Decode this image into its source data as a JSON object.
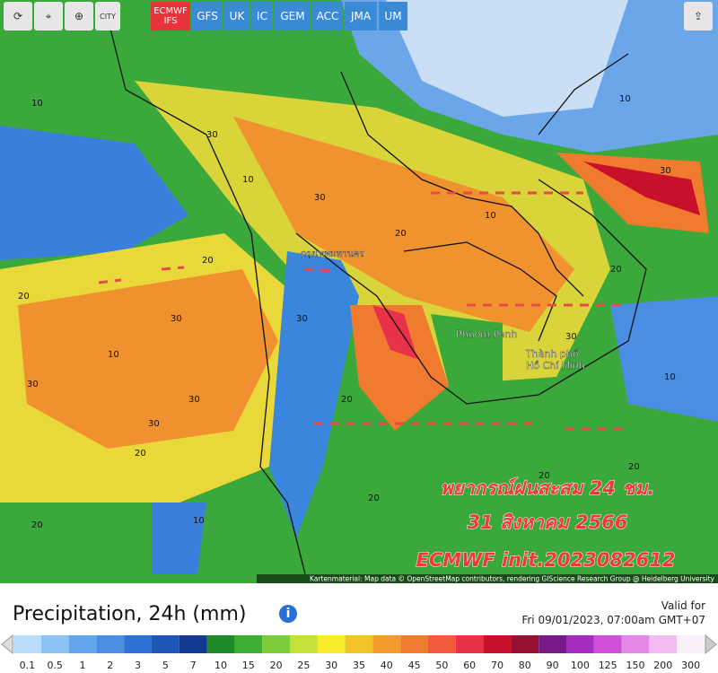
{
  "toolbar": {
    "city_button": "CITY",
    "models": [
      "ECMWF IFS",
      "GFS",
      "UK",
      "IC",
      "GEM",
      "ACC",
      "JMA",
      "UM"
    ]
  },
  "map": {
    "place_labels": [
      "กรุงเทพมหานคร",
      "Phnom Penh",
      "Thành phố",
      "Hồ Chí Minh"
    ],
    "contour_labels": [
      "10",
      "30",
      "10",
      "20",
      "30",
      "10",
      "20",
      "30",
      "30",
      "30",
      "20",
      "10",
      "20",
      "30",
      "20",
      "30",
      "20",
      "10",
      "30",
      "20",
      "20",
      "10",
      "30",
      "20",
      "10",
      "20"
    ],
    "overlay": [
      "พยากรณ์ฝนสะสม 24 ชม.",
      "31 สิงหาคม 2566",
      "ECMWF init.2023082612"
    ],
    "attribution": "Kartenmaterial: Map data © OpenStreetMap contributors, rendering GIScience Research Group @ Heidelberg University"
  },
  "panel": {
    "title": "Precipitation, 24h (mm)",
    "valid_label": "Valid for",
    "valid_time": "Fri 09/01/2023, 07:00am GMT+07",
    "scale_labels": [
      "0.1",
      "0.5",
      "1",
      "2",
      "3",
      "5",
      "7",
      "10",
      "15",
      "20",
      "25",
      "30",
      "35",
      "40",
      "45",
      "50",
      "60",
      "70",
      "80",
      "90",
      "100",
      "125",
      "150",
      "200",
      "300"
    ],
    "scale_colors": [
      "#b9dcfa",
      "#8cc2f4",
      "#64a6ec",
      "#4a8ee4",
      "#2e72d6",
      "#1e56b8",
      "#123a90",
      "#1f8a2a",
      "#3cae32",
      "#7ccc3a",
      "#c4e03a",
      "#f6ec2c",
      "#f2c42a",
      "#f29a2a",
      "#f07a2e",
      "#f05a3a",
      "#e8324a",
      "#c8102a",
      "#981032",
      "#7a1a8a",
      "#a42cc0",
      "#d050d8",
      "#e488e8",
      "#f2bcf2",
      "#faf0fa"
    ]
  }
}
